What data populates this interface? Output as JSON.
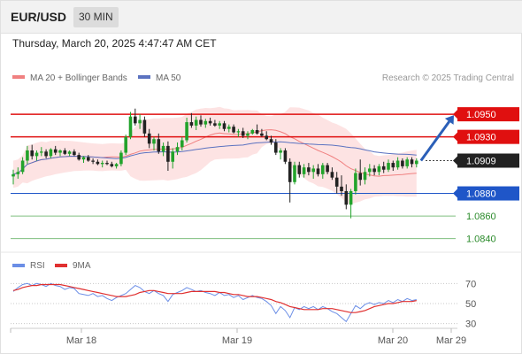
{
  "header": {
    "symbol": "EUR/USD",
    "timeframe": "30 MIN"
  },
  "timestamp": "Thursday, March 20, 2025 4:47:47 AM CET",
  "legend": {
    "ma20_bb": "MA 20 + Bollinger Bands",
    "ma50": "MA 50",
    "credit": "Research © 2025 Trading Central"
  },
  "colors": {
    "bull": "#22a32b",
    "bear": "#222222",
    "ma20": "#f08080",
    "ma50": "#5b72c0",
    "bands": "#fcd9d9",
    "resistance": "#e01010",
    "support": "#1f56c8",
    "target_support": "#7fbf7f",
    "current": "#222222",
    "rsi": "#6b8ee6",
    "rsi_ma": "#e03030",
    "arrow": "#2b5fb8"
  },
  "chart_data": [
    {
      "type": "candlestick",
      "title": "EUR/USD",
      "ylim": [
        1.0828,
        1.0972
      ],
      "x_ticks": [
        "Mar 18",
        "Mar 19",
        "Mar 20",
        "Mar 29"
      ],
      "series": [
        {
          "name": "EUR/USD",
          "ohlc": [
            [
              1.0895,
              1.0901,
              1.0888,
              1.0897
            ],
            [
              1.0897,
              1.0903,
              1.0893,
              1.0899
            ],
            [
              1.0899,
              1.0912,
              1.0897,
              1.0909
            ],
            [
              1.0909,
              1.0922,
              1.0906,
              1.0918
            ],
            [
              1.0918,
              1.0923,
              1.091,
              1.0913
            ],
            [
              1.0913,
              1.0918,
              1.0909,
              1.0916
            ],
            [
              1.0916,
              1.0921,
              1.0913,
              1.0917
            ],
            [
              1.0917,
              1.0919,
              1.0911,
              1.0913
            ],
            [
              1.0913,
              1.092,
              1.0911,
              1.0919
            ],
            [
              1.0919,
              1.0922,
              1.0914,
              1.0916
            ],
            [
              1.0916,
              1.0919,
              1.0913,
              1.0918
            ],
            [
              1.0918,
              1.092,
              1.0914,
              1.0915
            ],
            [
              1.0915,
              1.0918,
              1.0913,
              1.0917
            ],
            [
              1.0917,
              1.0919,
              1.0913,
              1.0914
            ],
            [
              1.0914,
              1.0916,
              1.0909,
              1.091
            ],
            [
              1.091,
              1.0913,
              1.0907,
              1.0912
            ],
            [
              1.0912,
              1.0914,
              1.0908,
              1.0909
            ],
            [
              1.0909,
              1.0911,
              1.0906,
              1.0908
            ],
            [
              1.0908,
              1.091,
              1.0905,
              1.0906
            ],
            [
              1.0906,
              1.0909,
              1.0903,
              1.0907
            ],
            [
              1.0907,
              1.0909,
              1.0905,
              1.0906
            ],
            [
              1.0906,
              1.0908,
              1.0903,
              1.0904
            ],
            [
              1.0904,
              1.0907,
              1.0902,
              1.0906
            ],
            [
              1.0906,
              1.0918,
              1.0904,
              1.0916
            ],
            [
              1.0916,
              1.0932,
              1.0914,
              1.093
            ],
            [
              1.093,
              1.0952,
              1.0928,
              1.0948
            ],
            [
              1.0948,
              1.0955,
              1.094,
              1.0942
            ],
            [
              1.0942,
              1.095,
              1.0937,
              1.0945
            ],
            [
              1.0945,
              1.0948,
              1.093,
              1.0933
            ],
            [
              1.0933,
              1.0937,
              1.092,
              1.0924
            ],
            [
              1.0924,
              1.093,
              1.0918,
              1.0928
            ],
            [
              1.0928,
              1.0933,
              1.0915,
              1.0917
            ],
            [
              1.0917,
              1.0925,
              1.0913,
              1.0922
            ],
            [
              1.0922,
              1.0926,
              1.09,
              1.0908
            ],
            [
              1.0908,
              1.092,
              1.0902,
              1.0917
            ],
            [
              1.0917,
              1.0925,
              1.0914,
              1.0921
            ],
            [
              1.0921,
              1.093,
              1.0918,
              1.0927
            ],
            [
              1.0927,
              1.0947,
              1.0925,
              1.0943
            ],
            [
              1.0943,
              1.0951,
              1.0938,
              1.094
            ],
            [
              1.094,
              1.0948,
              1.0936,
              1.0945
            ],
            [
              1.0945,
              1.0949,
              1.0939,
              1.0941
            ],
            [
              1.0941,
              1.0946,
              1.0938,
              1.0944
            ],
            [
              1.0944,
              1.0947,
              1.094,
              1.0942
            ],
            [
              1.0942,
              1.0945,
              1.0939,
              1.094
            ],
            [
              1.094,
              1.0944,
              1.0937,
              1.0942
            ],
            [
              1.0942,
              1.0944,
              1.0935,
              1.0937
            ],
            [
              1.0937,
              1.0941,
              1.0934,
              1.0939
            ],
            [
              1.0939,
              1.0941,
              1.0933,
              1.0934
            ],
            [
              1.0934,
              1.0937,
              1.093,
              1.0935
            ],
            [
              1.0935,
              1.0938,
              1.0929,
              1.0931
            ],
            [
              1.0931,
              1.0935,
              1.0928,
              1.0933
            ],
            [
              1.0933,
              1.0937,
              1.0932,
              1.0936
            ],
            [
              1.0936,
              1.0941,
              1.0932,
              1.0933
            ],
            [
              1.0933,
              1.0937,
              1.093,
              1.0931
            ],
            [
              1.0931,
              1.0935,
              1.0927,
              1.0928
            ],
            [
              1.0928,
              1.0931,
              1.0923,
              1.0925
            ],
            [
              1.0925,
              1.0928,
              1.0914,
              1.0916
            ],
            [
              1.0916,
              1.092,
              1.091,
              1.0918
            ],
            [
              1.0918,
              1.092,
              1.0906,
              1.0908
            ],
            [
              1.0908,
              1.0911,
              1.0872,
              1.089
            ],
            [
              1.089,
              1.0908,
              1.0888,
              1.0905
            ],
            [
              1.0905,
              1.0908,
              1.0894,
              1.0897
            ],
            [
              1.0897,
              1.0906,
              1.0894,
              1.0903
            ],
            [
              1.0903,
              1.0907,
              1.0896,
              1.0899
            ],
            [
              1.0899,
              1.0905,
              1.0893,
              1.0902
            ],
            [
              1.0902,
              1.0906,
              1.0895,
              1.0897
            ],
            [
              1.0897,
              1.0907,
              1.0893,
              1.0905
            ],
            [
              1.0905,
              1.0907,
              1.0897,
              1.0899
            ],
            [
              1.0899,
              1.0903,
              1.0892,
              1.0894
            ],
            [
              1.0894,
              1.0899,
              1.088,
              1.0886
            ],
            [
              1.0886,
              1.0896,
              1.0878,
              1.0882
            ],
            [
              1.0882,
              1.0888,
              1.0866,
              1.087
            ],
            [
              1.087,
              1.0884,
              1.0858,
              1.0882
            ],
            [
              1.0882,
              1.0902,
              1.0879,
              1.0898
            ],
            [
              1.0898,
              1.091,
              1.0887,
              1.0892
            ],
            [
              1.0892,
              1.0903,
              1.0888,
              1.0899
            ],
            [
              1.0899,
              1.0906,
              1.0895,
              1.0902
            ],
            [
              1.0902,
              1.0905,
              1.0896,
              1.0899
            ],
            [
              1.0899,
              1.0906,
              1.0896,
              1.0904
            ],
            [
              1.0904,
              1.0908,
              1.0898,
              1.0901
            ],
            [
              1.0901,
              1.091,
              1.0899,
              1.0907
            ],
            [
              1.0907,
              1.0909,
              1.09,
              1.0903
            ],
            [
              1.0903,
              1.0912,
              1.0901,
              1.0909
            ],
            [
              1.0909,
              1.0911,
              1.0902,
              1.0904
            ],
            [
              1.0904,
              1.0912,
              1.0902,
              1.091
            ],
            [
              1.091,
              1.0912,
              1.0903,
              1.0906
            ],
            [
              1.0906,
              1.0911,
              1.0903,
              1.0909
            ]
          ]
        }
      ],
      "levels": [
        {
          "value": 1.095,
          "label": "1.0950",
          "kind": "resistance"
        },
        {
          "value": 1.093,
          "label": "1.0930",
          "kind": "resistance"
        },
        {
          "value": 1.0909,
          "label": "1.0909",
          "kind": "current"
        },
        {
          "value": 1.088,
          "label": "1.0880",
          "kind": "support"
        },
        {
          "value": 1.086,
          "label": "1.0860",
          "kind": "target"
        },
        {
          "value": 1.084,
          "label": "1.0840",
          "kind": "target"
        }
      ],
      "projection": {
        "from": 1.0909,
        "to": 1.095
      },
      "grid": false
    },
    {
      "type": "line",
      "title": "RSI",
      "ylim": [
        20,
        80
      ],
      "y_ticks": [
        30,
        50,
        70
      ],
      "legend": [
        "RSI",
        "9MA"
      ],
      "series": [
        {
          "name": "RSI",
          "values": [
            62,
            66,
            69,
            70,
            68,
            70,
            69,
            67,
            70,
            68,
            67,
            64,
            66,
            65,
            60,
            59,
            58,
            60,
            57,
            58,
            55,
            53,
            56,
            58,
            60,
            64,
            68,
            66,
            62,
            60,
            63,
            60,
            58,
            52,
            59,
            61,
            63,
            66,
            64,
            62,
            63,
            61,
            60,
            58,
            61,
            58,
            59,
            56,
            58,
            54,
            56,
            58,
            56,
            55,
            52,
            48,
            40,
            47,
            43,
            36,
            46,
            44,
            47,
            45,
            47,
            44,
            47,
            45,
            42,
            40,
            36,
            32,
            40,
            48,
            45,
            49,
            51,
            49,
            51,
            50,
            53,
            51,
            54,
            52,
            55,
            53,
            54
          ]
        },
        {
          "name": "9MA",
          "values": [
            63,
            64,
            66,
            67,
            68,
            68,
            69,
            69,
            69,
            69,
            69,
            68,
            67,
            66,
            65,
            64,
            63,
            62,
            61,
            60,
            59,
            58,
            57,
            57,
            57,
            58,
            59,
            61,
            62,
            63,
            63,
            62,
            61,
            60,
            60,
            60,
            60,
            61,
            62,
            62,
            62,
            62,
            62,
            62,
            61,
            61,
            60,
            59,
            59,
            58,
            57,
            57,
            57,
            56,
            55,
            54,
            52,
            51,
            49,
            47,
            46,
            45,
            44,
            44,
            44,
            44,
            45,
            45,
            45,
            44,
            43,
            42,
            41,
            41,
            42,
            43,
            45,
            47,
            48,
            49,
            50,
            50,
            51,
            52,
            52,
            52,
            53
          ]
        }
      ]
    }
  ]
}
